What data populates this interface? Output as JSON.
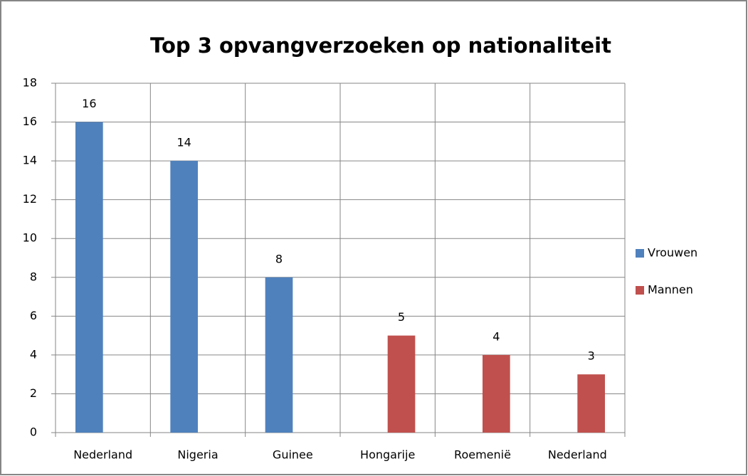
{
  "chart_data": {
    "type": "bar",
    "title": "Top 3 opvangverzoeken op nationaliteit",
    "categories": [
      "Nederland",
      "Nigeria",
      "Guinee",
      "Hongarije",
      "Roemenië",
      "Nederland"
    ],
    "series": [
      {
        "name": "Vrouwen",
        "color": "#4f81bd",
        "values": [
          16,
          14,
          8,
          null,
          null,
          null
        ]
      },
      {
        "name": "Mannen",
        "color": "#c0504d",
        "values": [
          null,
          null,
          null,
          5,
          4,
          3
        ]
      }
    ],
    "ylim": [
      0,
      18
    ],
    "yticks": [
      0,
      2,
      4,
      6,
      8,
      10,
      12,
      14,
      16,
      18
    ],
    "grid": true,
    "legend": "right"
  }
}
